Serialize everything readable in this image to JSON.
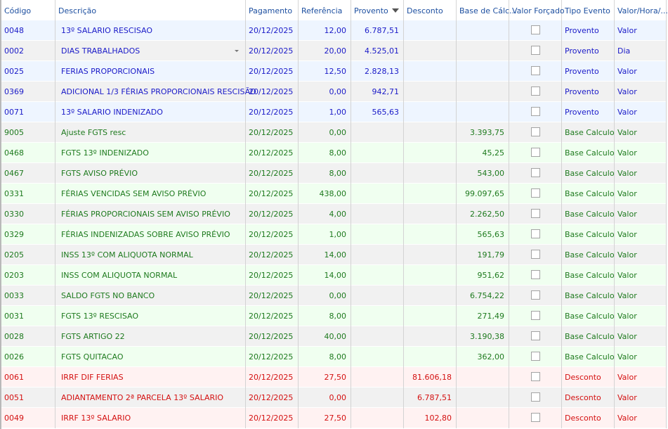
{
  "columns": [
    {
      "key": "codigo",
      "label": "Código"
    },
    {
      "key": "descricao",
      "label": "Descrição"
    },
    {
      "key": "pagamento",
      "label": "Pagamento"
    },
    {
      "key": "referencia",
      "label": "Referência"
    },
    {
      "key": "provento",
      "label": "Provento"
    },
    {
      "key": "desconto",
      "label": "Desconto"
    },
    {
      "key": "base",
      "label": "Base de Cálc..."
    },
    {
      "key": "forcado",
      "label": "Valor Forçado"
    },
    {
      "key": "tipo",
      "label": "Tipo Evento"
    },
    {
      "key": "valorhora",
      "label": "Valor/Hora/..."
    }
  ],
  "colors": {
    "proventos": "#1a1ac8",
    "base": "#1e7a1e",
    "desconto": "#d41010",
    "row_proventos_alt": "#eef5ff",
    "row_base_alt": "#f0fff0",
    "row_desconto_alt": "#fff2f2",
    "row_neutral": "#f1f1f1"
  },
  "rows": [
    {
      "codigo": "0048",
      "descricao": "13º SALARIO RESCISAO",
      "pagamento": "20/12/2025",
      "referencia": "12,00",
      "provento": "6.787,51",
      "desconto": "",
      "base": "",
      "forcado": false,
      "tipo": "Proventos",
      "tipo_label": "Provento",
      "valorhora": "Valor"
    },
    {
      "codigo": "0002",
      "descricao": "DIAS TRABALHADOS",
      "pagamento": "20/12/2025",
      "referencia": "20,00",
      "provento": "4.525,01",
      "desconto": "",
      "base": "",
      "forcado": false,
      "tipo": "Proventos",
      "tipo_label": "Provento",
      "valorhora": "Dia",
      "dropdown": true
    },
    {
      "codigo": "0025",
      "descricao": "FERIAS PROPORCIONAIS",
      "pagamento": "20/12/2025",
      "referencia": "12,50",
      "provento": "2.828,13",
      "desconto": "",
      "base": "",
      "forcado": false,
      "tipo": "Proventos",
      "tipo_label": "Provento",
      "valorhora": "Valor"
    },
    {
      "codigo": "0369",
      "descricao": "ADICIONAL 1/3 FÉRIAS PROPORCIONAIS RESCISÃO",
      "pagamento": "20/12/2025",
      "referencia": "0,00",
      "provento": "942,71",
      "desconto": "",
      "base": "",
      "forcado": false,
      "tipo": "Proventos",
      "tipo_label": "Provento",
      "valorhora": "Valor"
    },
    {
      "codigo": "0071",
      "descricao": "13º SALARIO INDENIZADO",
      "pagamento": "20/12/2025",
      "referencia": "1,00",
      "provento": "565,63",
      "desconto": "",
      "base": "",
      "forcado": false,
      "tipo": "Proventos",
      "tipo_label": "Provento",
      "valorhora": "Valor"
    },
    {
      "codigo": "9005",
      "descricao": "Ajuste FGTS resc",
      "pagamento": "20/12/2025",
      "referencia": "0,00",
      "provento": "",
      "desconto": "",
      "base": "3.393,75",
      "forcado": false,
      "tipo": "Base",
      "tipo_label": "Base Calculo",
      "valorhora": "Valor"
    },
    {
      "codigo": "0468",
      "descricao": "FGTS 13º INDENIZADO",
      "pagamento": "20/12/2025",
      "referencia": "8,00",
      "provento": "",
      "desconto": "",
      "base": "45,25",
      "forcado": false,
      "tipo": "Base",
      "tipo_label": "Base Calculo",
      "valorhora": "Valor"
    },
    {
      "codigo": "0467",
      "descricao": "FGTS AVISO PRÉVIO",
      "pagamento": "20/12/2025",
      "referencia": "8,00",
      "provento": "",
      "desconto": "",
      "base": "543,00",
      "forcado": false,
      "tipo": "Base",
      "tipo_label": "Base Calculo",
      "valorhora": "Valor"
    },
    {
      "codigo": "0331",
      "descricao": "FÉRIAS VENCIDAS SEM AVISO PRÉVIO",
      "pagamento": "20/12/2025",
      "referencia": "438,00",
      "provento": "",
      "desconto": "",
      "base": "99.097,65",
      "forcado": false,
      "tipo": "Base",
      "tipo_label": "Base Calculo",
      "valorhora": "Valor"
    },
    {
      "codigo": "0330",
      "descricao": "FÉRIAS PROPORCIONAIS SEM AVISO PRÉVIO",
      "pagamento": "20/12/2025",
      "referencia": "4,00",
      "provento": "",
      "desconto": "",
      "base": "2.262,50",
      "forcado": false,
      "tipo": "Base",
      "tipo_label": "Base Calculo",
      "valorhora": "Valor"
    },
    {
      "codigo": "0329",
      "descricao": "FÉRIAS INDENIZADAS SOBRE AVISO PRÉVIO",
      "pagamento": "20/12/2025",
      "referencia": "1,00",
      "provento": "",
      "desconto": "",
      "base": "565,63",
      "forcado": false,
      "tipo": "Base",
      "tipo_label": "Base Calculo",
      "valorhora": "Valor"
    },
    {
      "codigo": "0205",
      "descricao": "INSS 13º COM ALIQUOTA NORMAL",
      "pagamento": "20/12/2025",
      "referencia": "14,00",
      "provento": "",
      "desconto": "",
      "base": "191,79",
      "forcado": false,
      "tipo": "Base",
      "tipo_label": "Base Calculo",
      "valorhora": "Valor"
    },
    {
      "codigo": "0203",
      "descricao": "INSS COM ALIQUOTA NORMAL",
      "pagamento": "20/12/2025",
      "referencia": "14,00",
      "provento": "",
      "desconto": "",
      "base": "951,62",
      "forcado": false,
      "tipo": "Base",
      "tipo_label": "Base Calculo",
      "valorhora": "Valor"
    },
    {
      "codigo": "0033",
      "descricao": "SALDO FGTS NO BANCO",
      "pagamento": "20/12/2025",
      "referencia": "0,00",
      "provento": "",
      "desconto": "",
      "base": "6.754,22",
      "forcado": false,
      "tipo": "Base",
      "tipo_label": "Base Calculo",
      "valorhora": "Valor"
    },
    {
      "codigo": "0031",
      "descricao": "FGTS 13º RESCISAO",
      "pagamento": "20/12/2025",
      "referencia": "8,00",
      "provento": "",
      "desconto": "",
      "base": "271,49",
      "forcado": false,
      "tipo": "Base",
      "tipo_label": "Base Calculo",
      "valorhora": "Valor"
    },
    {
      "codigo": "0028",
      "descricao": "FGTS ARTIGO 22",
      "pagamento": "20/12/2025",
      "referencia": "40,00",
      "provento": "",
      "desconto": "",
      "base": "3.190,38",
      "forcado": false,
      "tipo": "Base",
      "tipo_label": "Base Calculo",
      "valorhora": "Valor"
    },
    {
      "codigo": "0026",
      "descricao": "FGTS QUITACAO",
      "pagamento": "20/12/2025",
      "referencia": "8,00",
      "provento": "",
      "desconto": "",
      "base": "362,00",
      "forcado": false,
      "tipo": "Base",
      "tipo_label": "Base Calculo",
      "valorhora": "Valor"
    },
    {
      "codigo": "0061",
      "descricao": "IRRF DIF FERIAS",
      "pagamento": "20/12/2025",
      "referencia": "27,50",
      "provento": "",
      "desconto": "81.606,18",
      "base": "",
      "forcado": false,
      "tipo": "Desconto",
      "tipo_label": "Desconto",
      "valorhora": "Valor"
    },
    {
      "codigo": "0051",
      "descricao": "ADIANTAMENTO 2ª PARCELA 13º SALARIO",
      "pagamento": "20/12/2025",
      "referencia": "0,00",
      "provento": "",
      "desconto": "6.787,51",
      "base": "",
      "forcado": false,
      "tipo": "Desconto",
      "tipo_label": "Desconto",
      "valorhora": "Valor"
    },
    {
      "codigo": "0049",
      "descricao": "IRRF 13º SALARIO",
      "pagamento": "20/12/2025",
      "referencia": "27,50",
      "provento": "",
      "desconto": "102,80",
      "base": "",
      "forcado": false,
      "tipo": "Desconto",
      "tipo_label": "Desconto",
      "valorhora": "Valor"
    }
  ]
}
